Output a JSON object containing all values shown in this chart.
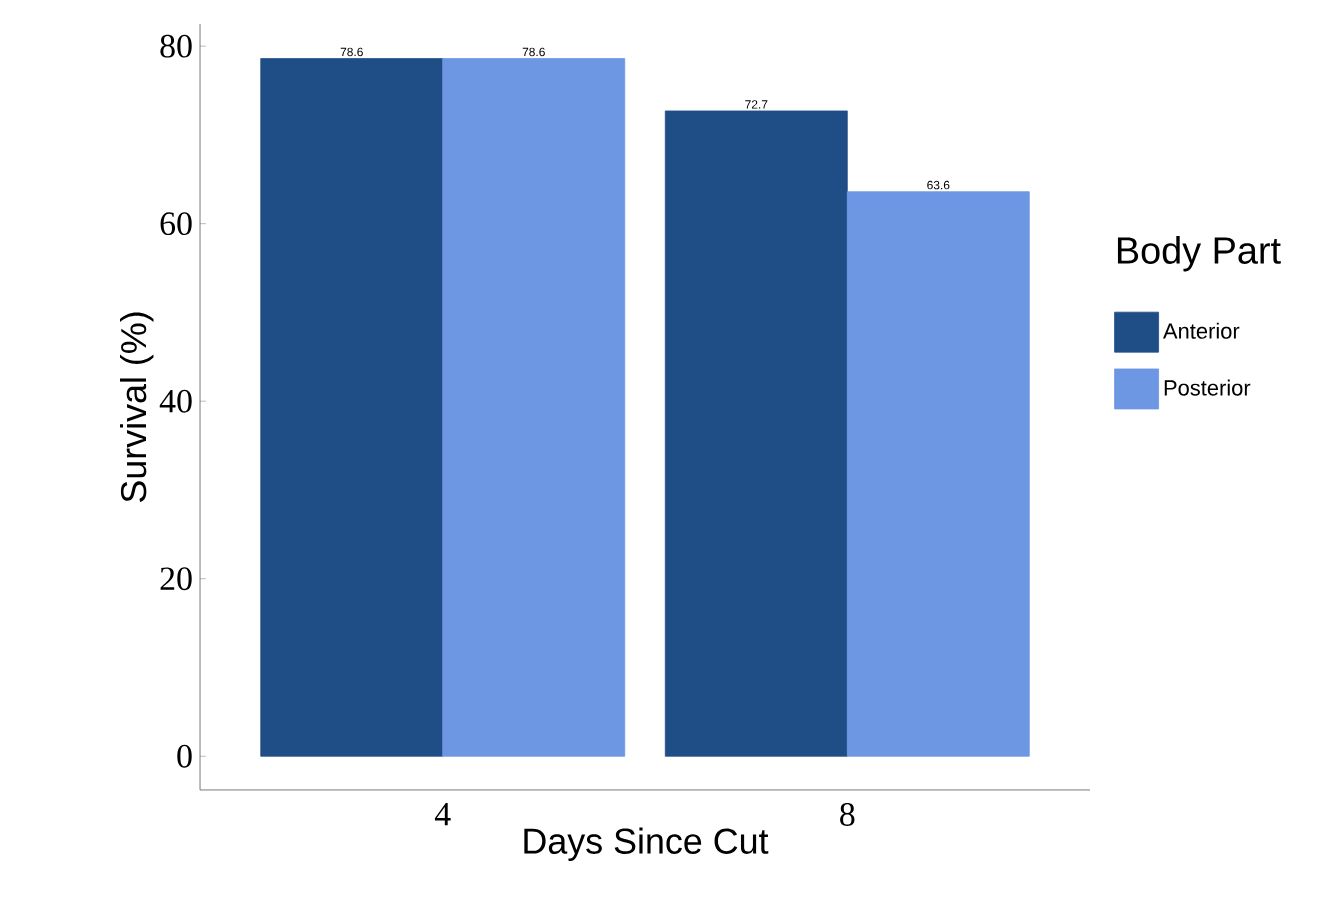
{
  "chart_data": {
    "type": "bar",
    "xlabel": "Days Since Cut",
    "ylabel": "Survival (%)",
    "legend_title": "Body Part",
    "categories": [
      "4",
      "8"
    ],
    "series": [
      {
        "name": "Anterior",
        "color": "#1f4e87",
        "values": [
          78.6,
          72.7
        ]
      },
      {
        "name": "Posterior",
        "color": "#6d96e3",
        "values": [
          78.6,
          63.6
        ]
      }
    ],
    "ylim": [
      -3.8,
      82.5
    ],
    "yticks": [
      0,
      20,
      40,
      60,
      80
    ],
    "grid": false,
    "legend": "right",
    "data_labels": true
  }
}
